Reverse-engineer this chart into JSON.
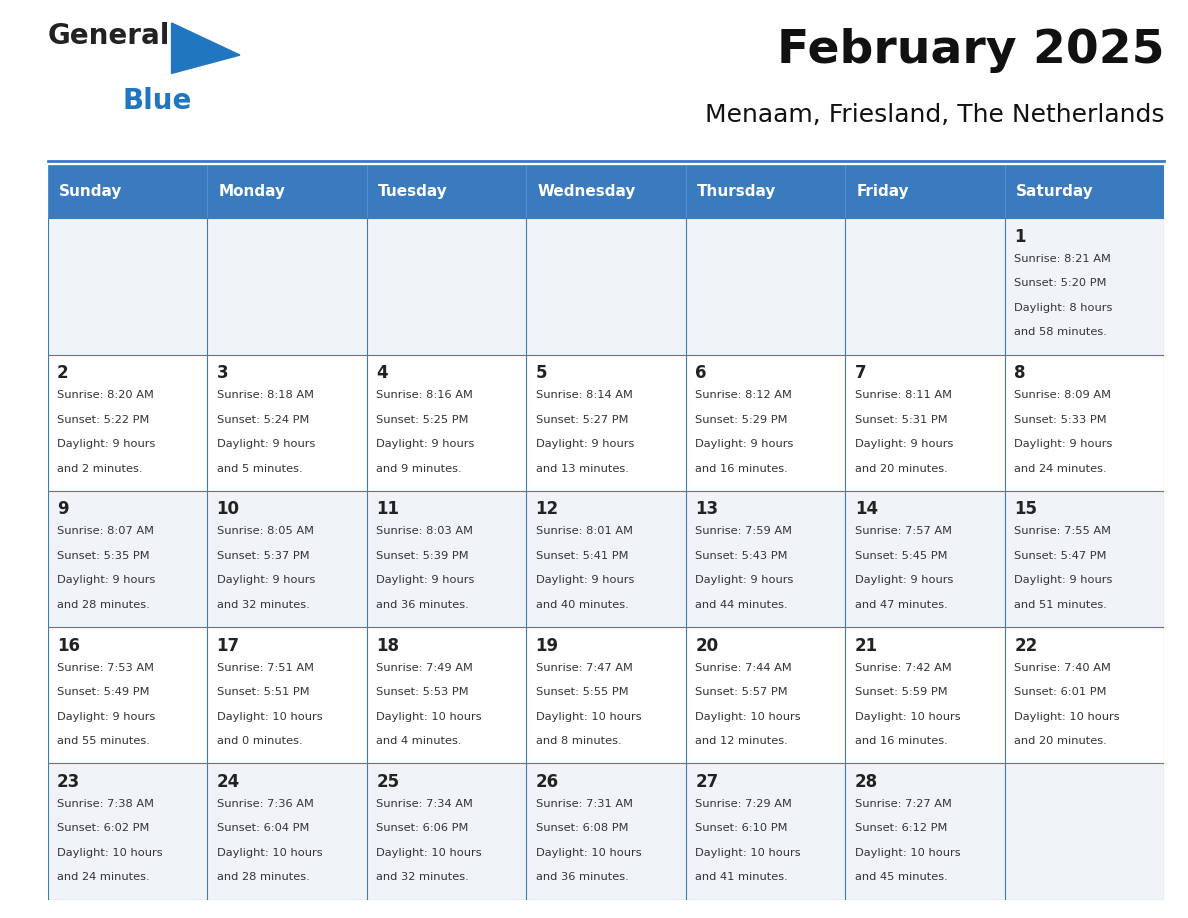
{
  "title": "February 2025",
  "subtitle": "Menaam, Friesland, The Netherlands",
  "header_bg": "#3a7abf",
  "header_text": "#ffffff",
  "cell_bg_light": "#f0f4f8",
  "cell_bg_white": "#ffffff",
  "border_color": "#3a7abf",
  "day_headers": [
    "Sunday",
    "Monday",
    "Tuesday",
    "Wednesday",
    "Thursday",
    "Friday",
    "Saturday"
  ],
  "logo_general_color": "#222222",
  "logo_blue_color": "#2077c0",
  "calendar_data": [
    [
      null,
      null,
      null,
      null,
      null,
      null,
      {
        "day": 1,
        "sunrise": "8:21 AM",
        "sunset": "5:20 PM",
        "daylight": "8 hours\nand 58 minutes."
      }
    ],
    [
      {
        "day": 2,
        "sunrise": "8:20 AM",
        "sunset": "5:22 PM",
        "daylight": "9 hours\nand 2 minutes."
      },
      {
        "day": 3,
        "sunrise": "8:18 AM",
        "sunset": "5:24 PM",
        "daylight": "9 hours\nand 5 minutes."
      },
      {
        "day": 4,
        "sunrise": "8:16 AM",
        "sunset": "5:25 PM",
        "daylight": "9 hours\nand 9 minutes."
      },
      {
        "day": 5,
        "sunrise": "8:14 AM",
        "sunset": "5:27 PM",
        "daylight": "9 hours\nand 13 minutes."
      },
      {
        "day": 6,
        "sunrise": "8:12 AM",
        "sunset": "5:29 PM",
        "daylight": "9 hours\nand 16 minutes."
      },
      {
        "day": 7,
        "sunrise": "8:11 AM",
        "sunset": "5:31 PM",
        "daylight": "9 hours\nand 20 minutes."
      },
      {
        "day": 8,
        "sunrise": "8:09 AM",
        "sunset": "5:33 PM",
        "daylight": "9 hours\nand 24 minutes."
      }
    ],
    [
      {
        "day": 9,
        "sunrise": "8:07 AM",
        "sunset": "5:35 PM",
        "daylight": "9 hours\nand 28 minutes."
      },
      {
        "day": 10,
        "sunrise": "8:05 AM",
        "sunset": "5:37 PM",
        "daylight": "9 hours\nand 32 minutes."
      },
      {
        "day": 11,
        "sunrise": "8:03 AM",
        "sunset": "5:39 PM",
        "daylight": "9 hours\nand 36 minutes."
      },
      {
        "day": 12,
        "sunrise": "8:01 AM",
        "sunset": "5:41 PM",
        "daylight": "9 hours\nand 40 minutes."
      },
      {
        "day": 13,
        "sunrise": "7:59 AM",
        "sunset": "5:43 PM",
        "daylight": "9 hours\nand 44 minutes."
      },
      {
        "day": 14,
        "sunrise": "7:57 AM",
        "sunset": "5:45 PM",
        "daylight": "9 hours\nand 47 minutes."
      },
      {
        "day": 15,
        "sunrise": "7:55 AM",
        "sunset": "5:47 PM",
        "daylight": "9 hours\nand 51 minutes."
      }
    ],
    [
      {
        "day": 16,
        "sunrise": "7:53 AM",
        "sunset": "5:49 PM",
        "daylight": "9 hours\nand 55 minutes."
      },
      {
        "day": 17,
        "sunrise": "7:51 AM",
        "sunset": "5:51 PM",
        "daylight": "10 hours\nand 0 minutes."
      },
      {
        "day": 18,
        "sunrise": "7:49 AM",
        "sunset": "5:53 PM",
        "daylight": "10 hours\nand 4 minutes."
      },
      {
        "day": 19,
        "sunrise": "7:47 AM",
        "sunset": "5:55 PM",
        "daylight": "10 hours\nand 8 minutes."
      },
      {
        "day": 20,
        "sunrise": "7:44 AM",
        "sunset": "5:57 PM",
        "daylight": "10 hours\nand 12 minutes."
      },
      {
        "day": 21,
        "sunrise": "7:42 AM",
        "sunset": "5:59 PM",
        "daylight": "10 hours\nand 16 minutes."
      },
      {
        "day": 22,
        "sunrise": "7:40 AM",
        "sunset": "6:01 PM",
        "daylight": "10 hours\nand 20 minutes."
      }
    ],
    [
      {
        "day": 23,
        "sunrise": "7:38 AM",
        "sunset": "6:02 PM",
        "daylight": "10 hours\nand 24 minutes."
      },
      {
        "day": 24,
        "sunrise": "7:36 AM",
        "sunset": "6:04 PM",
        "daylight": "10 hours\nand 28 minutes."
      },
      {
        "day": 25,
        "sunrise": "7:34 AM",
        "sunset": "6:06 PM",
        "daylight": "10 hours\nand 32 minutes."
      },
      {
        "day": 26,
        "sunrise": "7:31 AM",
        "sunset": "6:08 PM",
        "daylight": "10 hours\nand 36 minutes."
      },
      {
        "day": 27,
        "sunrise": "7:29 AM",
        "sunset": "6:10 PM",
        "daylight": "10 hours\nand 41 minutes."
      },
      {
        "day": 28,
        "sunrise": "7:27 AM",
        "sunset": "6:12 PM",
        "daylight": "10 hours\nand 45 minutes."
      },
      null
    ]
  ]
}
